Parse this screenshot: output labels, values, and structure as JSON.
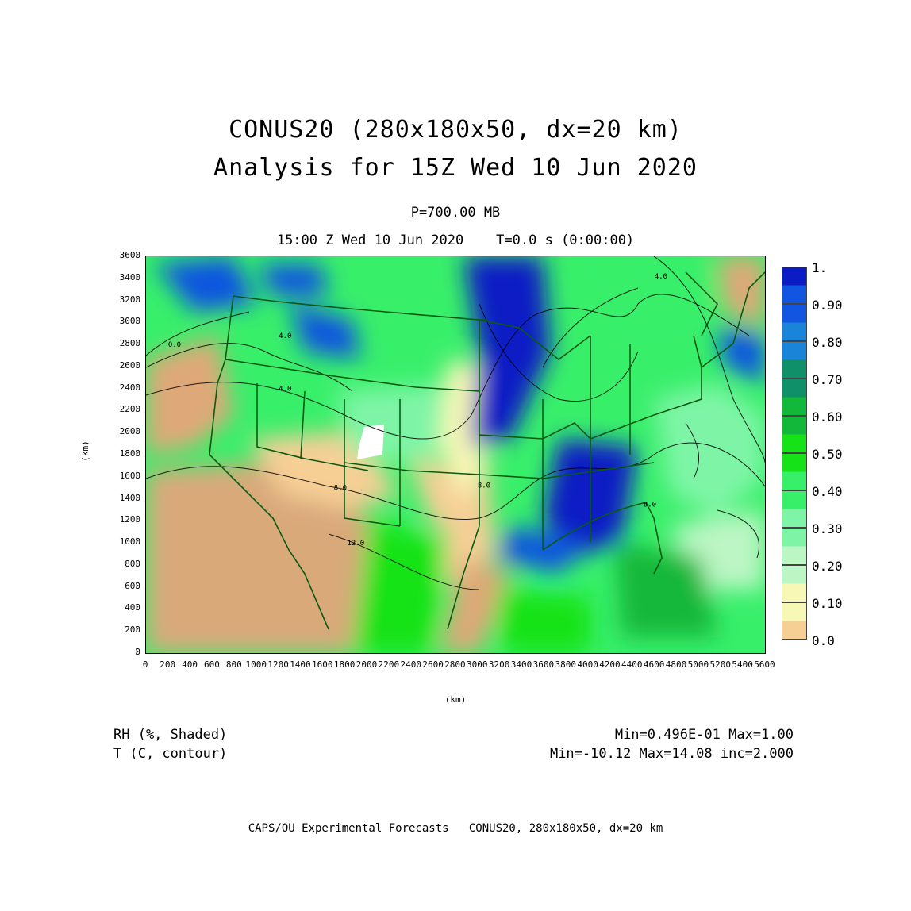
{
  "title": {
    "line1": "CONUS20 (280x180x50, dx=20 km)",
    "line2": "Analysis for 15Z Wed 10 Jun 2020"
  },
  "level": "P=700.00 MB",
  "timestamp": "15:00 Z Wed 10 Jun 2020    T=0.0 s (0:00:00)",
  "axes": {
    "xlabel": "(km)",
    "ylabel": "(km)",
    "xticks": [
      "0",
      "200",
      "400",
      "600",
      "800",
      "1000",
      "1200",
      "1400",
      "1600",
      "1800",
      "2000",
      "2200",
      "2400",
      "2600",
      "2800",
      "3000",
      "3200",
      "3400",
      "3600",
      "3800",
      "4000",
      "4200",
      "4400",
      "4600",
      "4800",
      "5000",
      "5200",
      "5400",
      "5600"
    ],
    "yticks": [
      "0",
      "200",
      "400",
      "600",
      "800",
      "1000",
      "1200",
      "1400",
      "1600",
      "1800",
      "2000",
      "2200",
      "2400",
      "2600",
      "2800",
      "3000",
      "3200",
      "3400",
      "3600"
    ],
    "xlim": [
      0,
      5600
    ],
    "ylim": [
      0,
      3600
    ]
  },
  "contour_labels": [
    {
      "text": "0.0",
      "x": 200,
      "y": 2780
    },
    {
      "text": "4.0",
      "x": 1200,
      "y": 2860
    },
    {
      "text": "4.0",
      "x": 1200,
      "y": 2380
    },
    {
      "text": "4.0",
      "x": 4600,
      "y": 3400
    },
    {
      "text": "8.0",
      "x": 1700,
      "y": 1480
    },
    {
      "text": "8.0",
      "x": 3000,
      "y": 1500
    },
    {
      "text": "8.0",
      "x": 4500,
      "y": 1330
    },
    {
      "text": "12.0",
      "x": 1820,
      "y": 980
    }
  ],
  "legend": {
    "labels": [
      "1.",
      "0.90",
      "0.80",
      "0.70",
      "0.60",
      "0.50",
      "0.40",
      "0.30",
      "0.20",
      "0.10",
      "0.0"
    ],
    "colors": [
      "#0b1cc4",
      "#1155e0",
      "#1a84d9",
      "#0f9068",
      "#12b83a",
      "#15e317",
      "#38ef6a",
      "#7ef5a6",
      "#bcf6c4",
      "#f7f7b6",
      "#f6cf95",
      "#dfa878",
      "#d09a6e"
    ]
  },
  "variables": {
    "shaded": "RH (%, Shaded)",
    "contour": "T (C, contour)"
  },
  "stats": {
    "shaded": "Min=0.496E-01 Max=1.00",
    "contour": "Min=-10.12 Max=14.08 inc=2.000"
  },
  "footer": "CAPS/OU Experimental Forecasts   CONUS20, 280x180x50, dx=20 km"
}
